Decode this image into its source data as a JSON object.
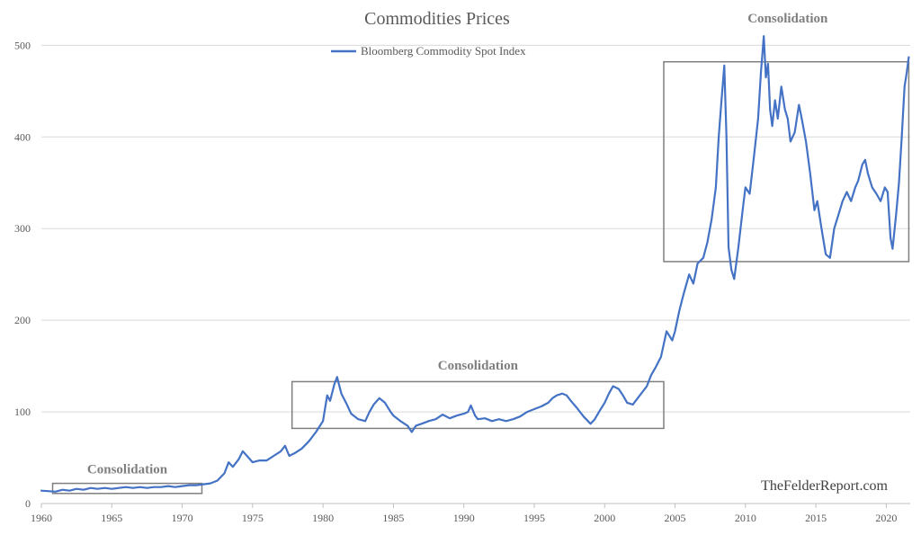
{
  "chart_data": {
    "type": "line",
    "title": "Commodities Prices",
    "xlabel": "",
    "ylabel": "",
    "xlim": [
      1960,
      2021.7
    ],
    "ylim": [
      0,
      520
    ],
    "yticks": [
      0,
      100,
      200,
      300,
      400,
      500
    ],
    "xticks": [
      1960,
      1965,
      1970,
      1975,
      1980,
      1985,
      1990,
      1995,
      2000,
      2005,
      2010,
      2015,
      2020
    ],
    "grid": "horizontal",
    "legend_position": "top-center",
    "series": [
      {
        "name": "Bloomberg Commodity Spot Index",
        "color": "#4472c4",
        "points": [
          [
            1960.0,
            14
          ],
          [
            1961.0,
            13
          ],
          [
            1961.5,
            15
          ],
          [
            1962.0,
            14
          ],
          [
            1962.5,
            16
          ],
          [
            1963.0,
            15
          ],
          [
            1963.5,
            17
          ],
          [
            1964.0,
            16
          ],
          [
            1964.5,
            17
          ],
          [
            1965.0,
            16
          ],
          [
            1965.5,
            17
          ],
          [
            1966.0,
            18
          ],
          [
            1966.5,
            17
          ],
          [
            1967.0,
            18
          ],
          [
            1967.5,
            17
          ],
          [
            1968.0,
            18
          ],
          [
            1968.5,
            18
          ],
          [
            1969.0,
            19
          ],
          [
            1969.5,
            18
          ],
          [
            1970.0,
            19
          ],
          [
            1970.5,
            20
          ],
          [
            1971.0,
            20
          ],
          [
            1971.5,
            21
          ],
          [
            1972.0,
            22
          ],
          [
            1972.5,
            25
          ],
          [
            1973.0,
            33
          ],
          [
            1973.3,
            45
          ],
          [
            1973.6,
            40
          ],
          [
            1974.0,
            48
          ],
          [
            1974.3,
            57
          ],
          [
            1974.6,
            52
          ],
          [
            1975.0,
            45
          ],
          [
            1975.5,
            47
          ],
          [
            1976.0,
            47
          ],
          [
            1976.5,
            52
          ],
          [
            1977.0,
            57
          ],
          [
            1977.3,
            63
          ],
          [
            1977.6,
            52
          ],
          [
            1978.0,
            55
          ],
          [
            1978.5,
            60
          ],
          [
            1979.0,
            68
          ],
          [
            1979.5,
            78
          ],
          [
            1980.0,
            90
          ],
          [
            1980.3,
            118
          ],
          [
            1980.5,
            112
          ],
          [
            1980.8,
            130
          ],
          [
            1981.0,
            138
          ],
          [
            1981.3,
            120
          ],
          [
            1981.7,
            108
          ],
          [
            1982.0,
            98
          ],
          [
            1982.5,
            92
          ],
          [
            1983.0,
            90
          ],
          [
            1983.3,
            100
          ],
          [
            1983.6,
            108
          ],
          [
            1984.0,
            115
          ],
          [
            1984.4,
            110
          ],
          [
            1984.8,
            100
          ],
          [
            1985.0,
            96
          ],
          [
            1985.5,
            90
          ],
          [
            1986.0,
            85
          ],
          [
            1986.3,
            78
          ],
          [
            1986.6,
            85
          ],
          [
            1987.0,
            87
          ],
          [
            1987.5,
            90
          ],
          [
            1988.0,
            92
          ],
          [
            1988.5,
            97
          ],
          [
            1989.0,
            93
          ],
          [
            1989.5,
            96
          ],
          [
            1990.0,
            98
          ],
          [
            1990.3,
            100
          ],
          [
            1990.5,
            107
          ],
          [
            1990.8,
            96
          ],
          [
            1991.0,
            92
          ],
          [
            1991.5,
            93
          ],
          [
            1992.0,
            90
          ],
          [
            1992.5,
            92
          ],
          [
            1993.0,
            90
          ],
          [
            1993.5,
            92
          ],
          [
            1994.0,
            95
          ],
          [
            1994.5,
            100
          ],
          [
            1995.0,
            103
          ],
          [
            1995.5,
            106
          ],
          [
            1996.0,
            110
          ],
          [
            1996.3,
            115
          ],
          [
            1996.6,
            118
          ],
          [
            1997.0,
            120
          ],
          [
            1997.3,
            118
          ],
          [
            1997.6,
            112
          ],
          [
            1998.0,
            105
          ],
          [
            1998.5,
            95
          ],
          [
            1999.0,
            87
          ],
          [
            1999.3,
            92
          ],
          [
            1999.6,
            100
          ],
          [
            2000.0,
            110
          ],
          [
            2000.3,
            120
          ],
          [
            2000.6,
            128
          ],
          [
            2001.0,
            125
          ],
          [
            2001.3,
            118
          ],
          [
            2001.6,
            110
          ],
          [
            2002.0,
            108
          ],
          [
            2002.5,
            118
          ],
          [
            2003.0,
            128
          ],
          [
            2003.3,
            140
          ],
          [
            2003.6,
            148
          ],
          [
            2004.0,
            160
          ],
          [
            2004.4,
            188
          ],
          [
            2004.8,
            178
          ],
          [
            2005.0,
            188
          ],
          [
            2005.3,
            210
          ],
          [
            2005.6,
            228
          ],
          [
            2006.0,
            250
          ],
          [
            2006.3,
            240
          ],
          [
            2006.6,
            262
          ],
          [
            2007.0,
            268
          ],
          [
            2007.3,
            285
          ],
          [
            2007.6,
            310
          ],
          [
            2007.9,
            345
          ],
          [
            2008.1,
            400
          ],
          [
            2008.3,
            440
          ],
          [
            2008.5,
            478
          ],
          [
            2008.65,
            400
          ],
          [
            2008.8,
            280
          ],
          [
            2009.0,
            255
          ],
          [
            2009.2,
            245
          ],
          [
            2009.5,
            280
          ],
          [
            2009.8,
            320
          ],
          [
            2010.0,
            345
          ],
          [
            2010.3,
            338
          ],
          [
            2010.6,
            378
          ],
          [
            2010.9,
            420
          ],
          [
            2011.1,
            470
          ],
          [
            2011.3,
            510
          ],
          [
            2011.45,
            465
          ],
          [
            2011.6,
            480
          ],
          [
            2011.75,
            430
          ],
          [
            2011.9,
            412
          ],
          [
            2012.1,
            440
          ],
          [
            2012.3,
            420
          ],
          [
            2012.55,
            455
          ],
          [
            2012.8,
            430
          ],
          [
            2013.0,
            420
          ],
          [
            2013.2,
            395
          ],
          [
            2013.5,
            405
          ],
          [
            2013.8,
            435
          ],
          [
            2014.0,
            420
          ],
          [
            2014.3,
            395
          ],
          [
            2014.6,
            360
          ],
          [
            2014.9,
            320
          ],
          [
            2015.1,
            330
          ],
          [
            2015.4,
            300
          ],
          [
            2015.7,
            272
          ],
          [
            2016.0,
            268
          ],
          [
            2016.3,
            300
          ],
          [
            2016.6,
            315
          ],
          [
            2016.9,
            330
          ],
          [
            2017.2,
            340
          ],
          [
            2017.5,
            330
          ],
          [
            2017.8,
            345
          ],
          [
            2018.0,
            352
          ],
          [
            2018.3,
            370
          ],
          [
            2018.5,
            375
          ],
          [
            2018.7,
            360
          ],
          [
            2019.0,
            345
          ],
          [
            2019.3,
            338
          ],
          [
            2019.6,
            330
          ],
          [
            2019.9,
            345
          ],
          [
            2020.1,
            340
          ],
          [
            2020.3,
            290
          ],
          [
            2020.45,
            278
          ],
          [
            2020.7,
            315
          ],
          [
            2020.9,
            350
          ],
          [
            2021.1,
            400
          ],
          [
            2021.3,
            455
          ],
          [
            2021.45,
            470
          ],
          [
            2021.6,
            487
          ]
        ]
      }
    ],
    "annotations": [
      {
        "text": "Consolidation",
        "box": {
          "x0": 1960.8,
          "x1": 1971.4,
          "y0": 11,
          "y1": 22
        },
        "label_at": {
          "x": 1966.1,
          "y": 33
        }
      },
      {
        "text": "Consolidation",
        "box": {
          "x0": 1977.8,
          "x1": 2004.2,
          "y0": 82,
          "y1": 133
        },
        "label_at": {
          "x": 1991.0,
          "y": 146
        }
      },
      {
        "text": "Consolidation",
        "box": {
          "x0": 2004.2,
          "x1": 2021.6,
          "y0": 264,
          "y1": 482
        },
        "label_at": {
          "x": 2013.0,
          "y": 525
        }
      }
    ],
    "watermark": "TheFelderReport.com"
  }
}
